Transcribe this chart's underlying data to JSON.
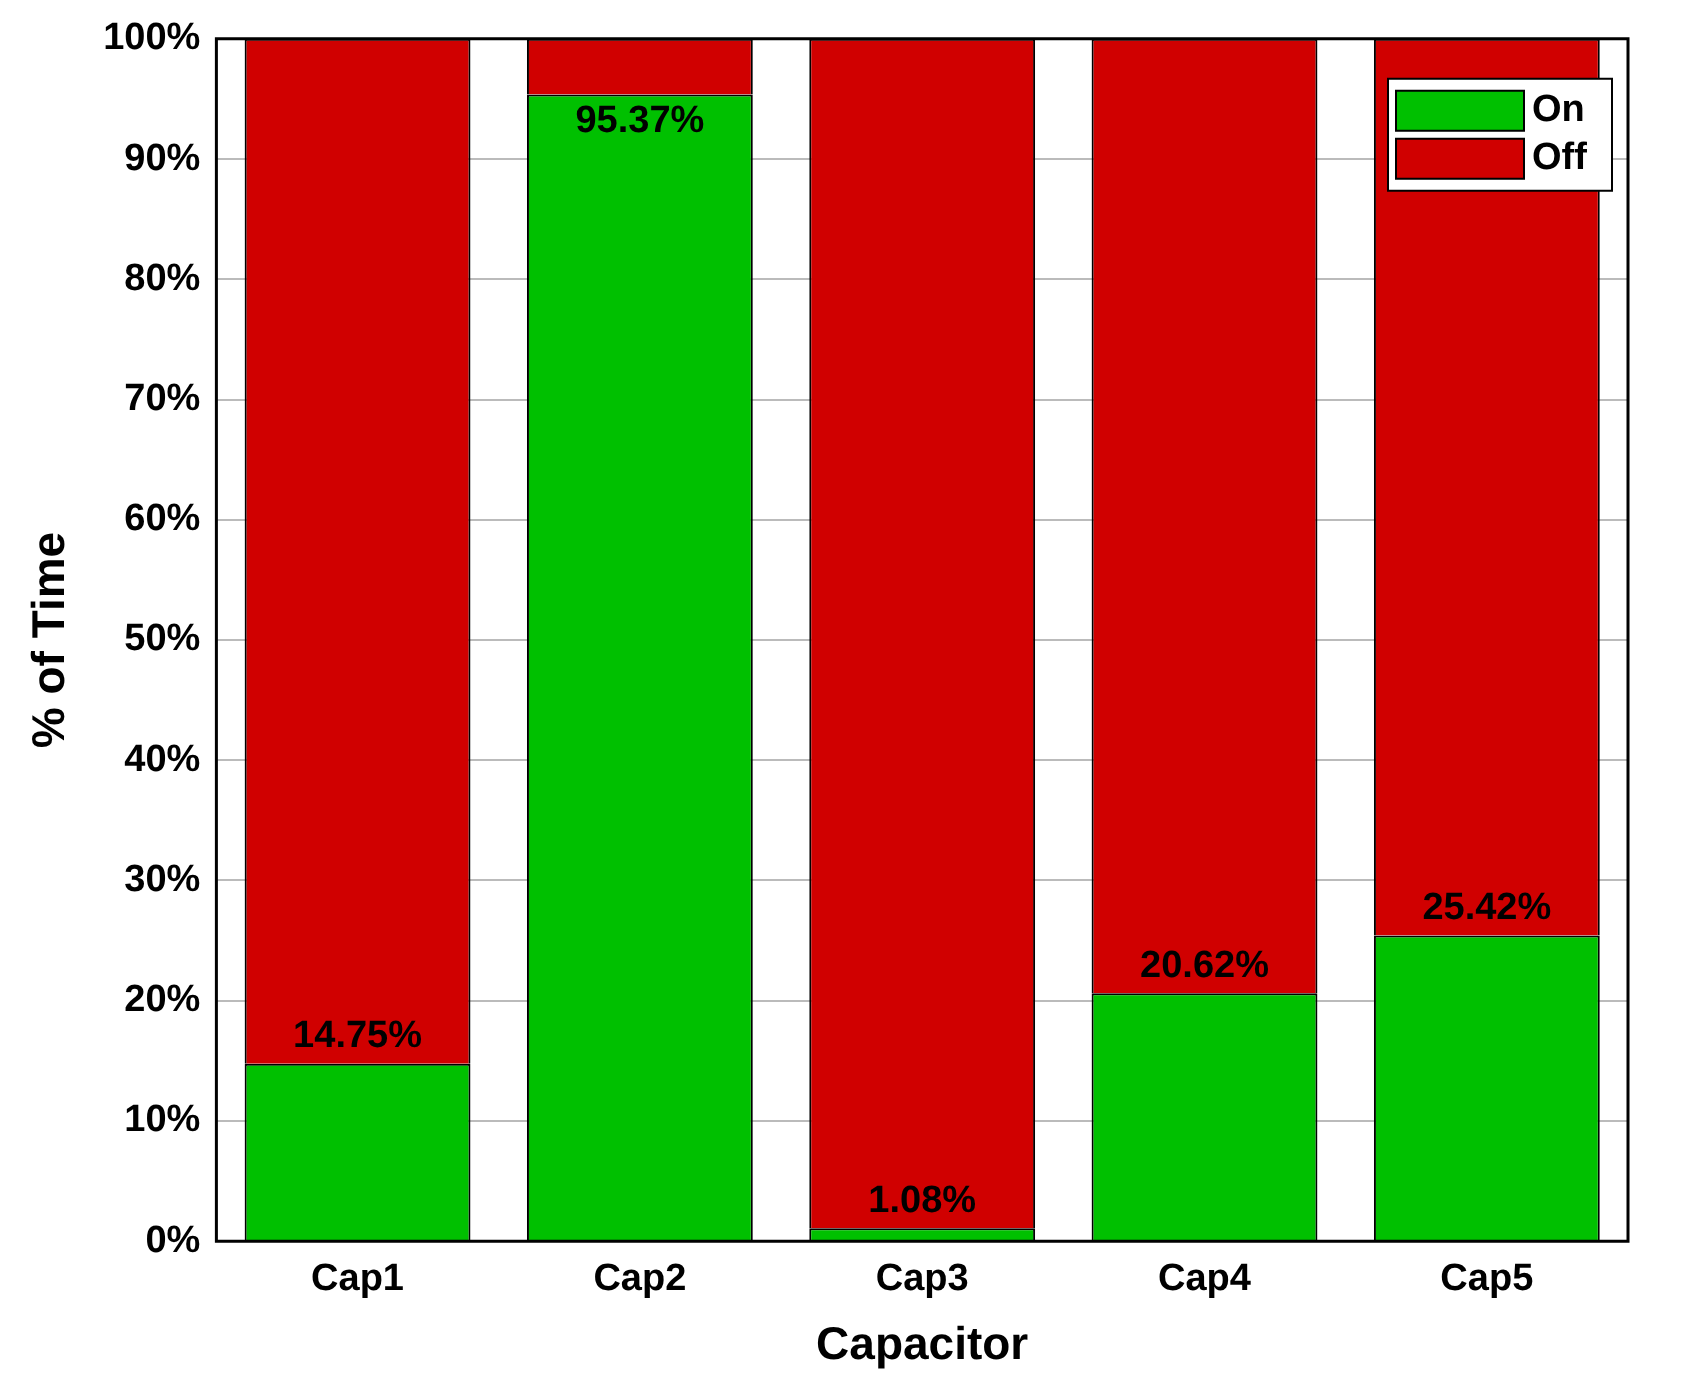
{
  "chart_data": {
    "type": "bar",
    "stacked": true,
    "xlabel": "Capacitor",
    "ylabel": "% of Time",
    "categories": [
      "Cap1",
      "Cap2",
      "Cap3",
      "Cap4",
      "Cap5"
    ],
    "series": [
      {
        "name": "On",
        "color": "#00c000",
        "values": [
          14.75,
          95.37,
          1.08,
          20.62,
          25.42
        ],
        "value_labels": [
          "14.75%",
          "95.37%",
          "1.08%",
          "20.62%",
          "25.42%"
        ]
      },
      {
        "name": "Off",
        "color": "#d00000",
        "values": [
          85.25,
          4.63,
          98.92,
          79.38,
          74.58
        ]
      }
    ],
    "ylim": [
      0,
      100
    ],
    "yticks": [
      {
        "value": 0,
        "label": "0%"
      },
      {
        "value": 10,
        "label": "10%"
      },
      {
        "value": 20,
        "label": "20%"
      },
      {
        "value": 30,
        "label": "30%"
      },
      {
        "value": 40,
        "label": "40%"
      },
      {
        "value": 50,
        "label": "50%"
      },
      {
        "value": 60,
        "label": "60%"
      },
      {
        "value": 70,
        "label": "70%"
      },
      {
        "value": 80,
        "label": "80%"
      },
      {
        "value": 90,
        "label": "90%"
      },
      {
        "value": 100,
        "label": "100%"
      }
    ],
    "grid": "y",
    "legend": "top right"
  }
}
